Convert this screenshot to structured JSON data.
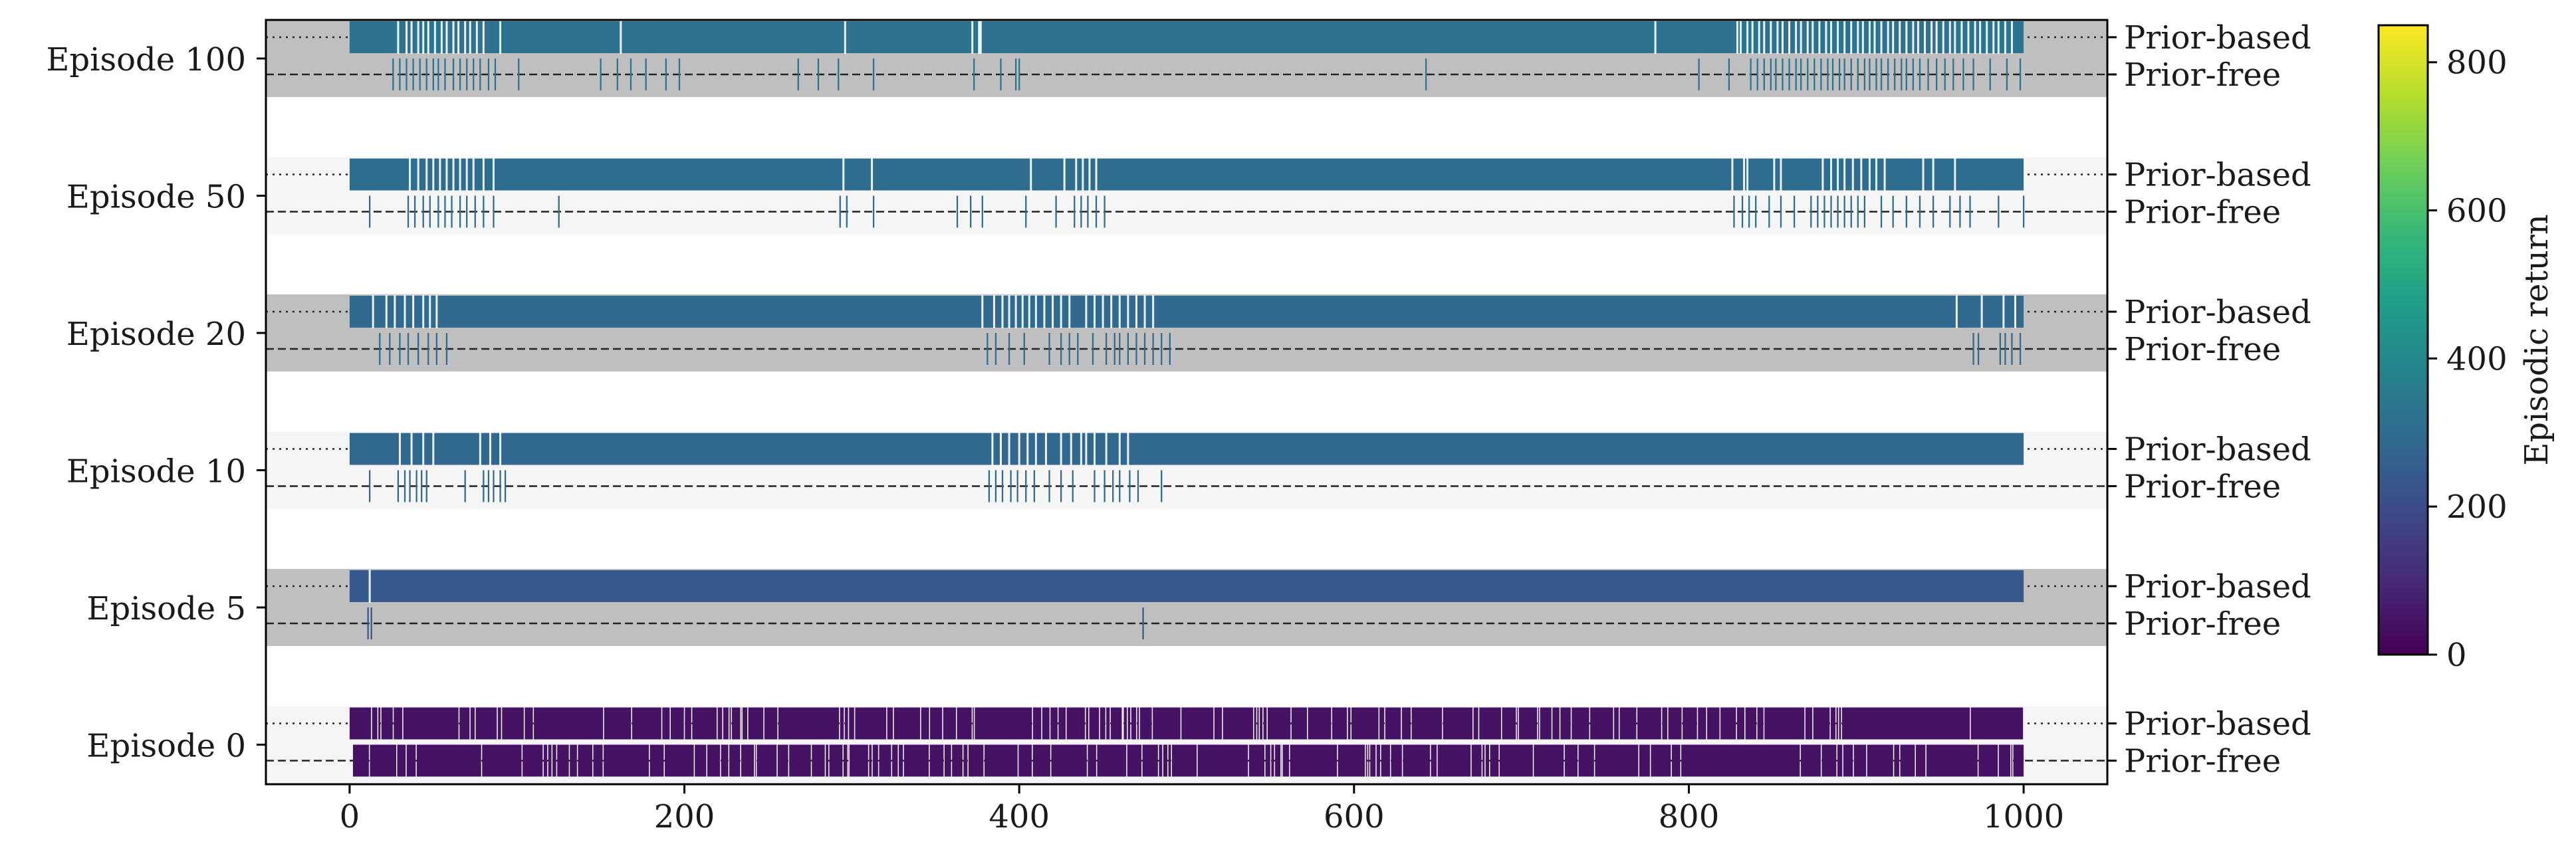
{
  "chart_data": {
    "type": "event-raster",
    "xlim": [
      -50,
      1050
    ],
    "xticks": [
      0,
      200,
      400,
      600,
      800,
      1000
    ],
    "episodes": [
      {
        "label": "Episode 100",
        "rows": [
          {
            "name": "Prior-based",
            "return": 320,
            "full": true,
            "gaps": [
              29,
              34,
              37,
              41,
              44,
              47,
              51,
              55,
              58,
              62,
              65,
              69,
              72,
              76,
              80,
              90,
              162,
              296,
              372,
              376,
              377,
              780,
              829,
              831,
              835,
              838,
              842,
              845,
              849,
              853,
              856,
              860,
              864,
              867,
              871,
              874,
              878,
              882,
              885,
              889,
              893,
              897,
              901,
              904,
              908,
              911,
              915,
              919,
              922,
              926,
              930,
              934,
              937,
              941,
              945,
              948,
              952,
              956,
              959,
              963,
              967,
              971,
              974,
              978,
              982,
              985,
              989,
              993
            ]
          },
          {
            "name": "Prior-free",
            "return": 320,
            "full": false,
            "events": [
              26,
              30,
              34,
              38,
              42,
              46,
              50,
              53,
              57,
              62,
              66,
              70,
              74,
              78,
              83,
              87,
              101,
              150,
              160,
              168,
              177,
              189,
              197,
              268,
              280,
              292,
              313,
              373,
              389,
              398,
              400,
              643,
              806,
              824,
              837,
              841,
              845,
              849,
              852,
              856,
              860,
              864,
              867,
              871,
              875,
              879,
              883,
              886,
              890,
              893,
              897,
              901,
              905,
              908,
              912,
              915,
              919,
              923,
              927,
              930,
              934,
              938,
              943,
              948,
              953,
              958,
              964,
              970,
              980,
              990,
              998
            ]
          }
        ]
      },
      {
        "label": "Episode 50",
        "rows": [
          {
            "name": "Prior-based",
            "return": 300,
            "full": true,
            "gaps": [
              36,
              41,
              46,
              50,
              54,
              58,
              62,
              66,
              70,
              74,
              80,
              86,
              295,
              312,
              407,
              427,
              434,
              438,
              442,
              446,
              826,
              833,
              835,
              851,
              855,
              880,
              885,
              889,
              893,
              898,
              903,
              908,
              912,
              917,
              940,
              946,
              959
            ]
          },
          {
            "name": "Prior-free",
            "return": 300,
            "full": false,
            "events": [
              12,
              35,
              39,
              44,
              48,
              53,
              57,
              61,
              66,
              70,
              75,
              80,
              86,
              125,
              293,
              297,
              313,
              363,
              371,
              378,
              404,
              422,
              433,
              437,
              441,
              446,
              451,
              827,
              832,
              836,
              840,
              848,
              855,
              863,
              873,
              877,
              881,
              885,
              889,
              893,
              897,
              901,
              905,
              915,
              922,
              930,
              938,
              946,
              956,
              962,
              968,
              985,
              1000
            ]
          }
        ]
      },
      {
        "label": "Episode 20",
        "rows": [
          {
            "name": "Prior-based",
            "return": 290,
            "full": true,
            "gaps": [
              14,
              22,
              27,
              33,
              38,
              44,
              48,
              52,
              378,
              385,
              390,
              394,
              398,
              402,
              406,
              410,
              415,
              420,
              425,
              430,
              440,
              445,
              450,
              455,
              460,
              465,
              470,
              475,
              480,
              960,
              975,
              988,
              995
            ]
          },
          {
            "name": "Prior-free",
            "return": 290,
            "full": false,
            "events": [
              18,
              24,
              30,
              35,
              41,
              47,
              52,
              58,
              381,
              386,
              394,
              403,
              418,
              425,
              430,
              435,
              444,
              452,
              457,
              460,
              465,
              470,
              475,
              480,
              485,
              490,
              970,
              973,
              986,
              989,
              993,
              998
            ]
          }
        ]
      },
      {
        "label": "Episode 10",
        "rows": [
          {
            "name": "Prior-based",
            "return": 285,
            "full": true,
            "gaps": [
              30,
              37,
              44,
              50,
              78,
              84,
              90,
              384,
              389,
              394,
              400,
              405,
              410,
              416,
              425,
              431,
              437,
              440,
              445,
              452,
              460,
              465
            ]
          },
          {
            "name": "Prior-free",
            "return": 285,
            "full": false,
            "events": [
              12,
              29,
              33,
              36,
              40,
              43,
              46,
              69,
              80,
              83,
              86,
              90,
              93,
              382,
              386,
              390,
              395,
              399,
              404,
              409,
              418,
              425,
              432,
              445,
              451,
              456,
              460,
              466,
              471,
              485
            ]
          }
        ]
      },
      {
        "label": "Episode 5",
        "rows": [
          {
            "name": "Prior-based",
            "return": 240,
            "full": true,
            "gaps": [
              12
            ]
          },
          {
            "name": "Prior-free",
            "return": 240,
            "full": false,
            "events": [
              11,
              13,
              474
            ]
          }
        ]
      },
      {
        "label": "Episode 0",
        "rows": [
          {
            "name": "Prior-based",
            "return": 40,
            "full": true,
            "dense": true,
            "seed": 7
          },
          {
            "name": "Prior-free",
            "return": 40,
            "full": true,
            "dense": true,
            "seed": 13,
            "lead": 2
          }
        ]
      }
    ],
    "colorbar": {
      "label": "Episodic return",
      "ticks": [
        0,
        200,
        400,
        600,
        800
      ],
      "range": [
        0,
        850
      ],
      "colormap": "viridis"
    }
  }
}
